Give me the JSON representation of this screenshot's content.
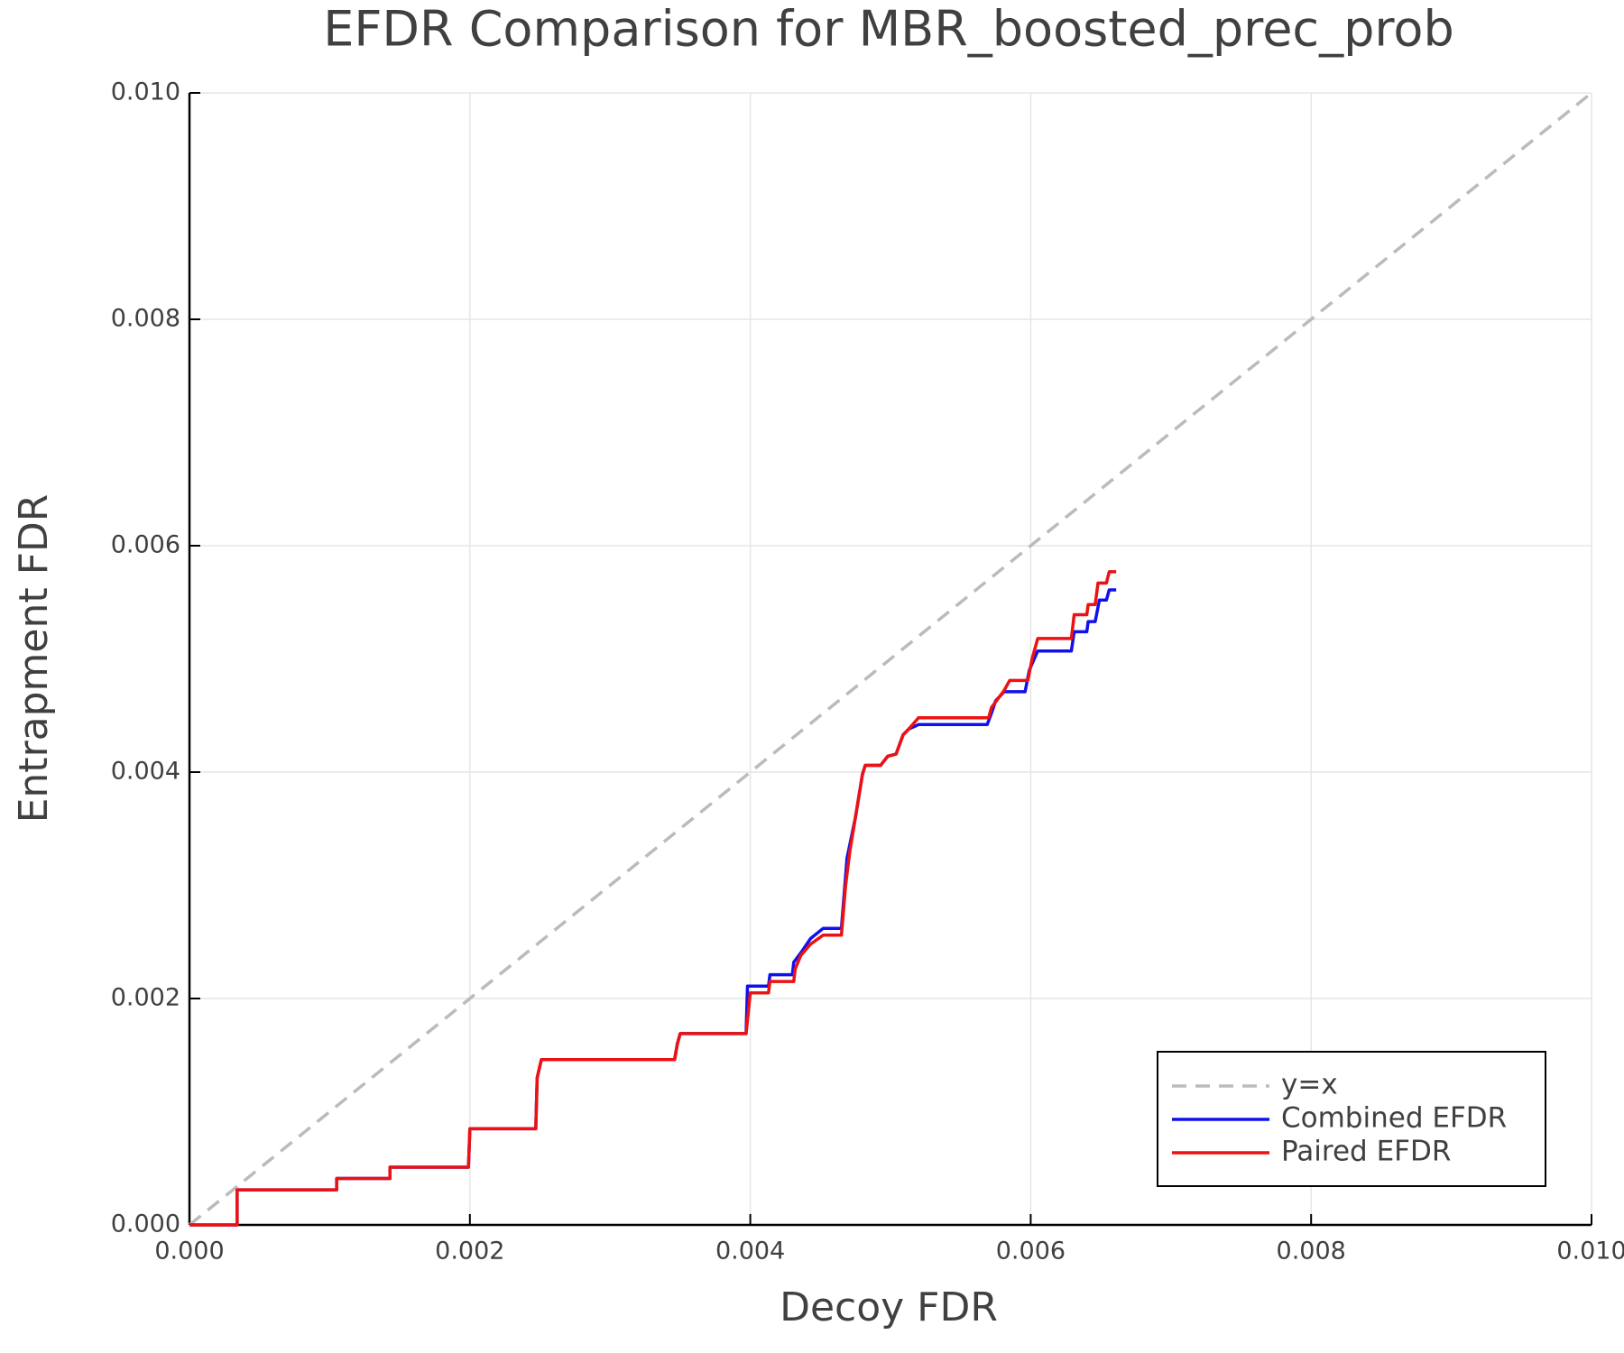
{
  "chart_data": {
    "type": "line",
    "title": "EFDR Comparison for MBR_boosted_prec_prob",
    "xlabel": "Decoy FDR",
    "ylabel": "Entrapment FDR",
    "xlim": [
      0,
      0.01
    ],
    "ylim": [
      0,
      0.01
    ],
    "xticks": [
      {
        "value": 0,
        "label": "0.000"
      },
      {
        "value": 0.002,
        "label": "0.002"
      },
      {
        "value": 0.004,
        "label": "0.004"
      },
      {
        "value": 0.006,
        "label": "0.006"
      },
      {
        "value": 0.008,
        "label": "0.008"
      },
      {
        "value": 0.01,
        "label": "0.010"
      }
    ],
    "yticks": [
      {
        "value": 0,
        "label": "0.000"
      },
      {
        "value": 0.002,
        "label": "0.002"
      },
      {
        "value": 0.004,
        "label": "0.004"
      },
      {
        "value": 0.006,
        "label": "0.006"
      },
      {
        "value": 0.008,
        "label": "0.008"
      },
      {
        "value": 0.01,
        "label": "0.010"
      }
    ],
    "grid": true,
    "legend": "lower right",
    "series": [
      {
        "name": "y=x",
        "color": "#bbbbbb",
        "linestyle": "dashed",
        "x": [
          0,
          0.01
        ],
        "values": [
          0,
          0.01
        ]
      },
      {
        "name": "Combined EFDR",
        "color": "#1010ee",
        "linestyle": "solid",
        "x": [
          0,
          0.00034,
          0.00034,
          0.00105,
          0.00105,
          0.00143,
          0.00143,
          0.00199,
          0.002,
          0.00247,
          0.00248,
          0.00251,
          0.00346,
          0.00348,
          0.0035,
          0.00397,
          0.00398,
          0.00413,
          0.00414,
          0.0043,
          0.00431,
          0.00437,
          0.00443,
          0.00452,
          0.00465,
          0.00469,
          0.00475,
          0.0048,
          0.00482,
          0.00493,
          0.00498,
          0.00504,
          0.00509,
          0.00513,
          0.0052,
          0.00569,
          0.00572,
          0.00575,
          0.00581,
          0.00596,
          0.00599,
          0.00605,
          0.00629,
          0.00631,
          0.0064,
          0.00641,
          0.00646,
          0.00649,
          0.00654,
          0.00656,
          0.00661
        ],
        "values": [
          0,
          0,
          0.00031,
          0.00031,
          0.00041,
          0.00041,
          0.00051,
          0.00051,
          0.00085,
          0.00085,
          0.0013,
          0.00146,
          0.00146,
          0.0016,
          0.00169,
          0.00169,
          0.00211,
          0.00211,
          0.00221,
          0.00221,
          0.00232,
          0.00242,
          0.00253,
          0.00262,
          0.00262,
          0.00324,
          0.0036,
          0.00398,
          0.00406,
          0.00406,
          0.00414,
          0.00416,
          0.00433,
          0.00438,
          0.00442,
          0.00442,
          0.00452,
          0.00463,
          0.00471,
          0.00471,
          0.0049,
          0.00507,
          0.00507,
          0.00524,
          0.00524,
          0.00533,
          0.00533,
          0.00552,
          0.00552,
          0.00561,
          0.00561
        ]
      },
      {
        "name": "Paired EFDR",
        "color": "#ee1111",
        "linestyle": "solid",
        "x": [
          0,
          0.00034,
          0.00034,
          0.00105,
          0.00105,
          0.00143,
          0.00143,
          0.00199,
          0.002,
          0.00247,
          0.00248,
          0.00251,
          0.00346,
          0.00348,
          0.0035,
          0.00397,
          0.004,
          0.00413,
          0.00414,
          0.00431,
          0.00432,
          0.00436,
          0.00443,
          0.00452,
          0.00465,
          0.00468,
          0.00471,
          0.00475,
          0.0048,
          0.00482,
          0.00493,
          0.00498,
          0.00504,
          0.00509,
          0.00513,
          0.0052,
          0.0057,
          0.00572,
          0.00581,
          0.00585,
          0.00598,
          0.00601,
          0.00605,
          0.00629,
          0.00631,
          0.0064,
          0.00641,
          0.00646,
          0.00648,
          0.00654,
          0.00656,
          0.00661
        ],
        "values": [
          0,
          0,
          0.00031,
          0.00031,
          0.00041,
          0.00041,
          0.00051,
          0.00051,
          0.00085,
          0.00085,
          0.0013,
          0.00146,
          0.00146,
          0.0016,
          0.00169,
          0.00169,
          0.00205,
          0.00205,
          0.00215,
          0.00215,
          0.00226,
          0.00238,
          0.00248,
          0.00256,
          0.00256,
          0.003,
          0.0033,
          0.0036,
          0.00398,
          0.00406,
          0.00406,
          0.00414,
          0.00416,
          0.00433,
          0.00438,
          0.00448,
          0.00448,
          0.00457,
          0.00472,
          0.00481,
          0.00481,
          0.005,
          0.00518,
          0.00518,
          0.00539,
          0.00539,
          0.00548,
          0.00548,
          0.00567,
          0.00567,
          0.00577,
          0.00577
        ]
      }
    ]
  }
}
